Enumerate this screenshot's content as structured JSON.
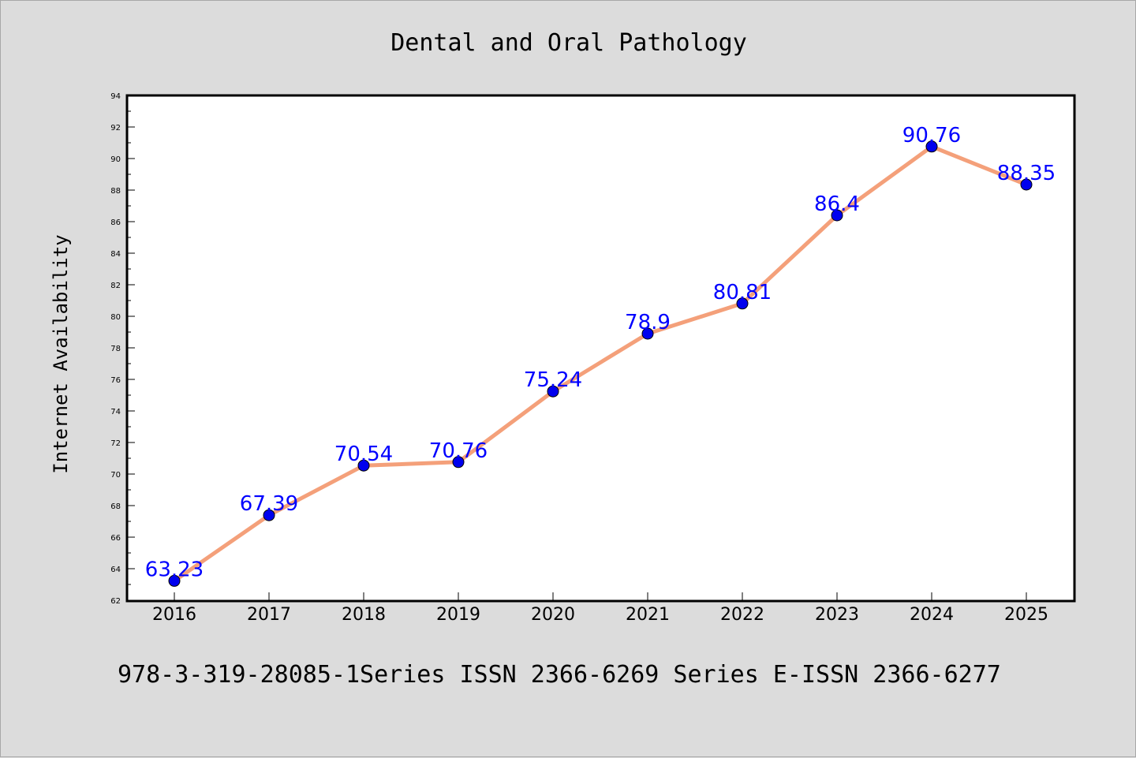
{
  "chart_data": {
    "type": "line",
    "title": "Dental and Oral Pathology",
    "xlabel": "",
    "ylabel": "Internet Availability",
    "categories": [
      "2016",
      "2017",
      "2018",
      "2019",
      "2020",
      "2021",
      "2022",
      "2023",
      "2024",
      "2025"
    ],
    "series": [
      {
        "values": [
          63.23,
          67.39,
          70.54,
          70.76,
          75.24,
          78.9,
          80.81,
          86.4,
          90.76,
          88.35
        ],
        "data_labels": [
          "63.23",
          "67.39",
          "70.54",
          "70.76",
          "75.24",
          "78.9",
          "80.81",
          "86.4",
          "90.76",
          "88.35"
        ],
        "line_color": "#f4a07a",
        "marker_color": "#0000ee"
      }
    ],
    "ylim": [
      62,
      94
    ],
    "yticks": [
      "62",
      "64",
      "66",
      "68",
      "70",
      "72",
      "74",
      "76",
      "78",
      "80",
      "82",
      "84",
      "86",
      "88",
      "90",
      "92",
      "94"
    ],
    "grid": false,
    "legend": "none"
  },
  "footer": {
    "text": "978-3-319-28085-1Series ISSN 2366-6269 Series E-ISSN 2366-6277"
  },
  "colors": {
    "background": "#dcdcdc",
    "plot_area": "#ffffff",
    "label_color": "#0000ff"
  }
}
